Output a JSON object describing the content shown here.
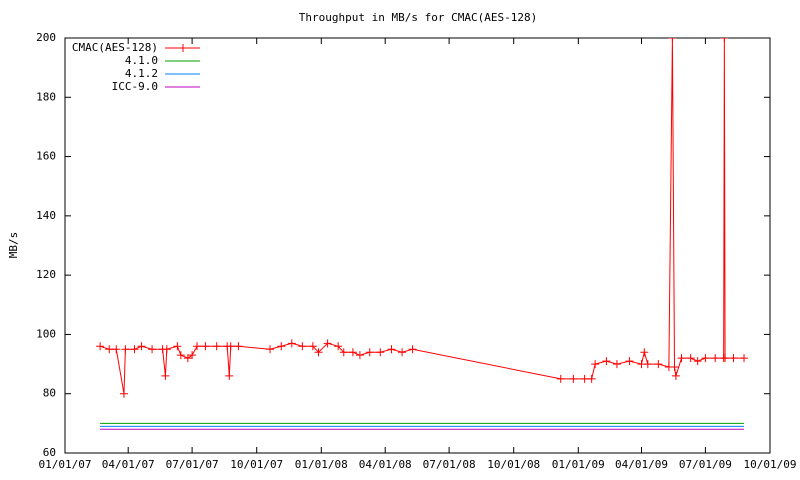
{
  "chart_data": {
    "type": "line",
    "title": "Throughput in MB/s for CMAC(AES-128)",
    "y_label": "MB/s",
    "xlim": [
      "2007-01-01",
      "2009-10-01"
    ],
    "xticks": [
      {
        "value": "2007-01-01",
        "label": "01/01/07"
      },
      {
        "value": "2007-04-01",
        "label": "04/01/07"
      },
      {
        "value": "2007-07-01",
        "label": "07/01/07"
      },
      {
        "value": "2007-10-01",
        "label": "10/01/07"
      },
      {
        "value": "2008-01-01",
        "label": "01/01/08"
      },
      {
        "value": "2008-04-01",
        "label": "04/01/08"
      },
      {
        "value": "2008-07-01",
        "label": "07/01/08"
      },
      {
        "value": "2008-10-01",
        "label": "10/01/08"
      },
      {
        "value": "2009-01-01",
        "label": "01/01/09"
      },
      {
        "value": "2009-04-01",
        "label": "04/01/09"
      },
      {
        "value": "2009-07-01",
        "label": "07/01/09"
      },
      {
        "value": "2009-10-01",
        "label": "10/01/09"
      }
    ],
    "ylim": [
      60,
      200
    ],
    "yticks": [
      60,
      80,
      100,
      120,
      140,
      160,
      180,
      200
    ],
    "grid": false,
    "legend": "top-left",
    "series": [
      {
        "name": "CMAC(AES-128)",
        "color": "#ff0000",
        "markers": true,
        "x": [
          "2007-02-20",
          "2007-03-05",
          "2007-03-15",
          "2007-03-26",
          "2007-03-28",
          "2007-04-10",
          "2007-04-20",
          "2007-05-05",
          "2007-05-20",
          "2007-05-24",
          "2007-05-26",
          "2007-06-10",
          "2007-06-15",
          "2007-06-25",
          "2007-07-01",
          "2007-07-08",
          "2007-07-20",
          "2007-08-05",
          "2007-08-20",
          "2007-08-23",
          "2007-08-25",
          "2007-09-05",
          "2007-10-20",
          "2007-11-05",
          "2007-11-20",
          "2007-12-05",
          "2007-12-20",
          "2007-12-28",
          "2008-01-10",
          "2008-01-25",
          "2008-02-02",
          "2008-02-15",
          "2008-02-25",
          "2008-03-10",
          "2008-03-25",
          "2008-04-10",
          "2008-04-25",
          "2008-05-10",
          "2008-12-07",
          "2008-12-25",
          "2009-01-10",
          "2009-01-20",
          "2009-01-25",
          "2009-02-10",
          "2009-02-25",
          "2009-03-15",
          "2009-04-01",
          "2009-04-05",
          "2009-04-10",
          "2009-04-25",
          "2009-05-10",
          "2009-05-15",
          "2009-05-18",
          "2009-05-20",
          "2009-05-28",
          "2009-06-10",
          "2009-06-20",
          "2009-07-01",
          "2009-07-15",
          "2009-07-27",
          "2009-07-28",
          "2009-07-29",
          "2009-08-10",
          "2009-08-25"
        ],
        "values": [
          96,
          95,
          95,
          80,
          95,
          95,
          96,
          95,
          95,
          86,
          95,
          96,
          93,
          92,
          93,
          96,
          96,
          96,
          96,
          86,
          96,
          96,
          95,
          96,
          97,
          96,
          96,
          94,
          97,
          96,
          94,
          94,
          93,
          94,
          94,
          95,
          94,
          95,
          85,
          85,
          85,
          85,
          90,
          91,
          90,
          91,
          90,
          94,
          90,
          90,
          89,
          200,
          89,
          86,
          92,
          92,
          91,
          92,
          92,
          92,
          200,
          92,
          92,
          92
        ]
      },
      {
        "name": "4.1.0",
        "color": "#00a000",
        "x": [
          "2007-02-20",
          "2009-08-25"
        ],
        "values": [
          70,
          70
        ]
      },
      {
        "name": "4.1.2",
        "color": "#0080ff",
        "x": [
          "2007-02-20",
          "2009-08-25"
        ],
        "values": [
          69,
          69
        ]
      },
      {
        "name": "ICC-9.0",
        "color": "#c000c0",
        "x": [
          "2007-02-20",
          "2009-08-25"
        ],
        "values": [
          68,
          68
        ]
      }
    ]
  }
}
